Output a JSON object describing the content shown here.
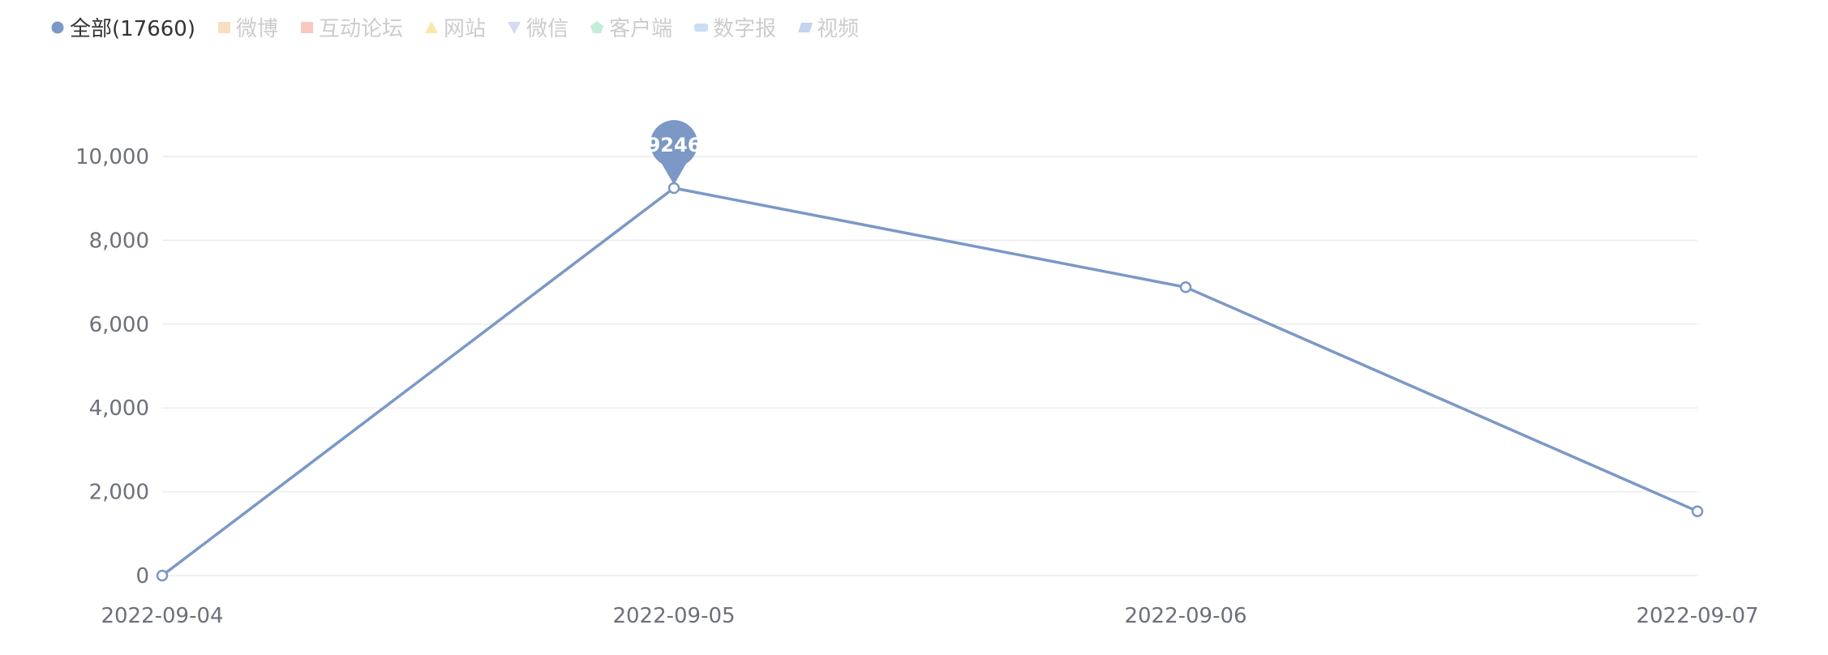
{
  "colors": {
    "series": "#7b98c6",
    "legend_active_text": "#333333",
    "legend_inactive_text": "#cccccc",
    "tick_text": "#6e7079",
    "grid": "#ececec"
  },
  "legend": [
    {
      "label": "全部(17660)",
      "icon": "circle",
      "color": "#7b98c6",
      "active": true
    },
    {
      "label": "微博",
      "icon": "rect",
      "color": "#f9ddc0",
      "active": false
    },
    {
      "label": "互动论坛",
      "icon": "rect",
      "color": "#f7c9c2",
      "active": false
    },
    {
      "label": "网站",
      "icon": "triangle",
      "color": "#fbe7a8",
      "active": false
    },
    {
      "label": "微信",
      "icon": "triangle-down",
      "color": "#d7d9ef",
      "active": false
    },
    {
      "label": "客户端",
      "icon": "pentagon",
      "color": "#c3ecd9",
      "active": false
    },
    {
      "label": "数字报",
      "icon": "pill-rect",
      "color": "#c8def3",
      "active": false
    },
    {
      "label": "视频",
      "icon": "parallelogram",
      "color": "#c5d3ee",
      "active": false
    }
  ],
  "chart_data": {
    "type": "line",
    "categories": [
      "2022-09-04",
      "2022-09-05",
      "2022-09-06",
      "2022-09-07"
    ],
    "series": [
      {
        "name": "全部(17660)",
        "values": [
          0,
          9246,
          6880,
          1534
        ]
      }
    ],
    "ylim": [
      0,
      10000
    ],
    "yticks": [
      0,
      2000,
      4000,
      6000,
      8000,
      10000
    ],
    "ytick_labels": [
      "0",
      "2,000",
      "4,000",
      "6,000",
      "8,000",
      "10,000"
    ],
    "xtick_labels": [
      "2022-09-04",
      "2022-09-05",
      "2022-09-06",
      "2022-09-07"
    ],
    "grid": true,
    "legend_position": "top-left",
    "mark_point": {
      "category": "2022-09-05",
      "value": 9246,
      "label": "9246"
    }
  }
}
